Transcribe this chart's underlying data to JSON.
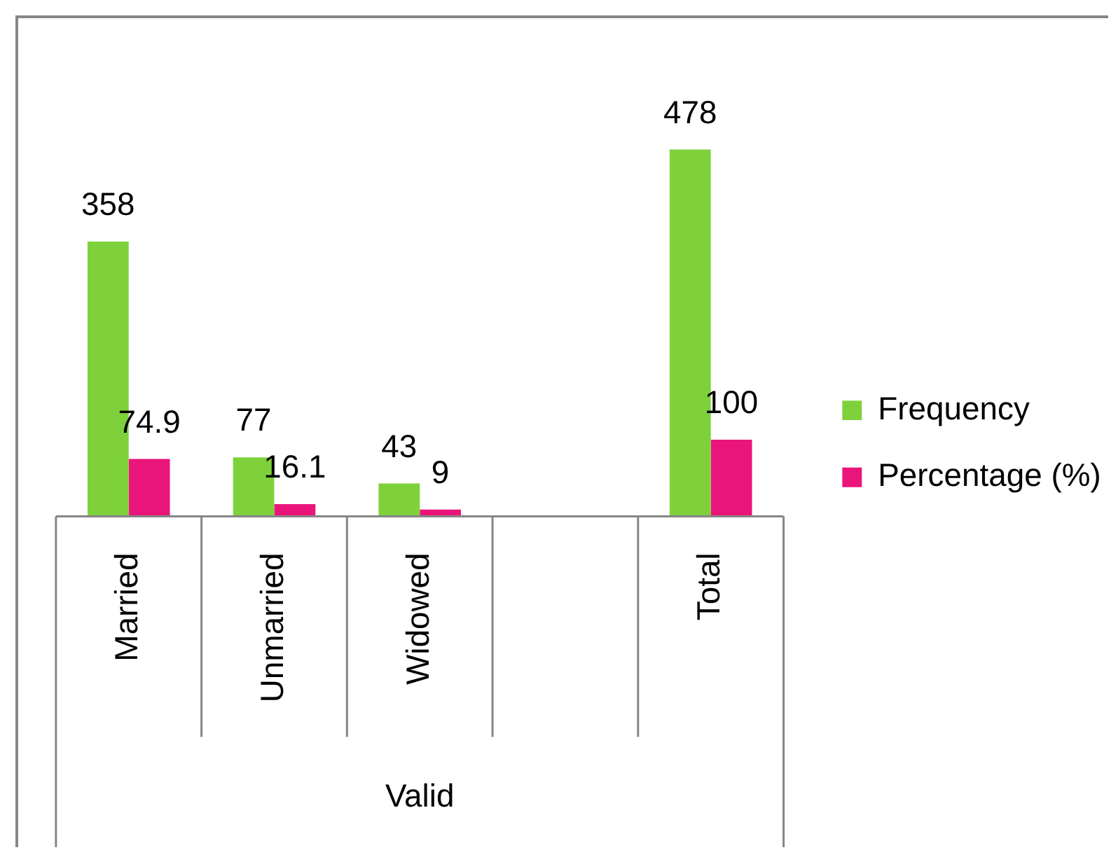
{
  "chart_data": {
    "type": "bar",
    "xlabel": "Valid",
    "categories": [
      "Married",
      "Unmarried",
      "Widowed",
      null,
      "Total"
    ],
    "series": [
      {
        "name": "Frequency",
        "color": "#7ed13b",
        "values": [
          358,
          77,
          43,
          null,
          478
        ]
      },
      {
        "name": "Percentage (%)",
        "color": "#ea157a",
        "values": [
          74.9,
          16.1,
          9,
          null,
          100
        ]
      }
    ],
    "data_labels": true,
    "legend": "right"
  }
}
